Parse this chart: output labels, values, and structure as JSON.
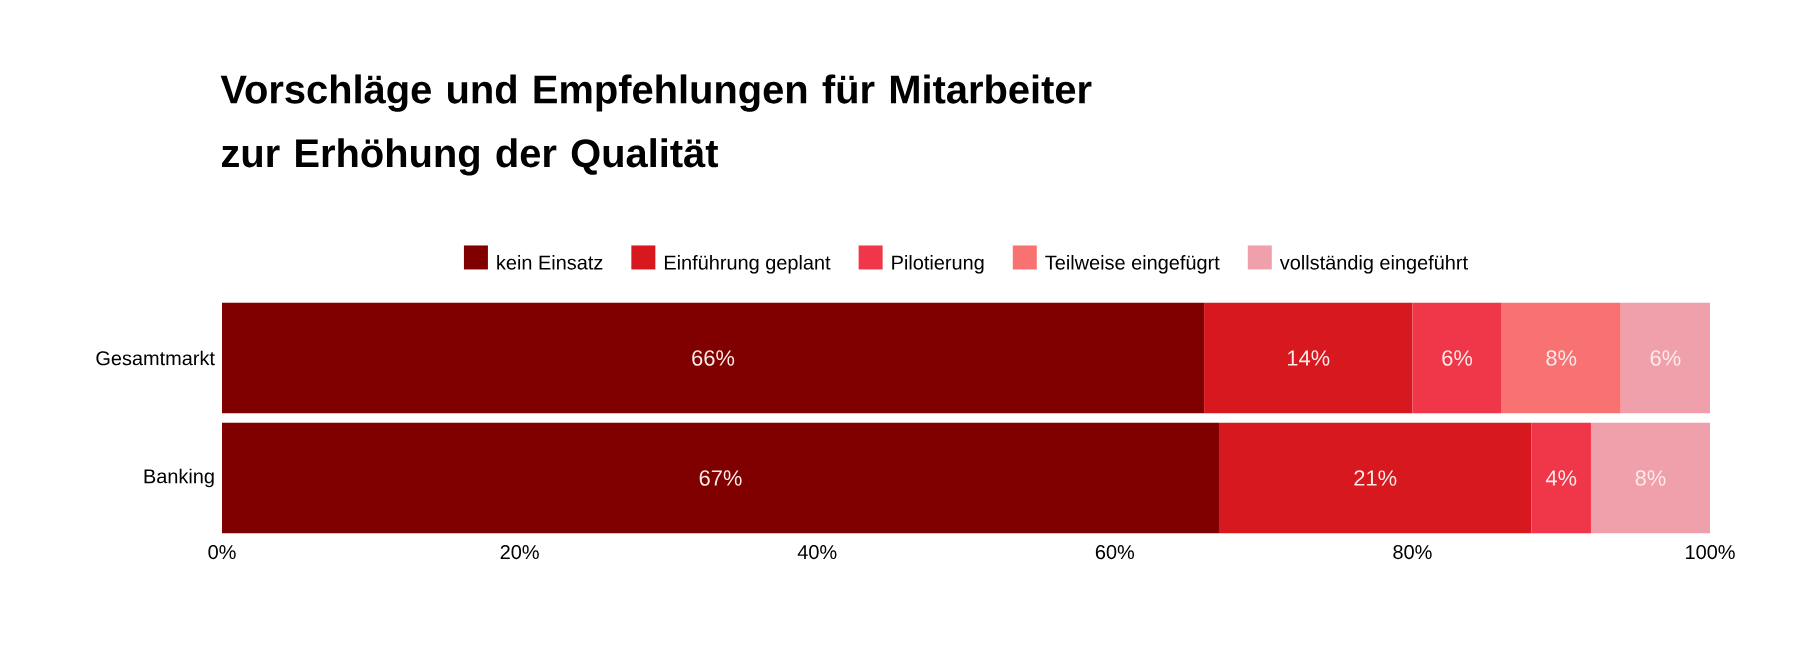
{
  "chart_data": {
    "type": "bar",
    "orientation": "horizontal",
    "stacked": true,
    "title": "Vorschläge und Empfehlungen für Mitarbeiter zur Erhöhung der Qualität",
    "categories": [
      "Gesamtmarkt",
      "Banking"
    ],
    "series": [
      {
        "name": "kein Einsatz",
        "color": "#800000",
        "values": [
          66,
          67
        ],
        "value_labels": [
          "66%",
          "67%"
        ]
      },
      {
        "name": "Einführung geplant",
        "color": "#d7191f",
        "values": [
          14,
          21
        ],
        "value_labels": [
          "14%",
          "21%"
        ]
      },
      {
        "name": "Pilotierung",
        "color": "#f0374a",
        "values": [
          6,
          4
        ],
        "value_labels": [
          "6%",
          "4%"
        ]
      },
      {
        "name": "Teilweise eingefügrt",
        "color": "#f87272",
        "values": [
          8,
          null
        ],
        "value_labels": [
          "8%",
          null
        ]
      },
      {
        "name": "vollständig eingeführt",
        "color": "#f0a0aa",
        "values": [
          6,
          8
        ],
        "value_labels": [
          "6%",
          "8%"
        ]
      }
    ],
    "xlim": [
      0,
      100
    ],
    "xticks": [
      {
        "value": 0,
        "label": "0%"
      },
      {
        "value": 20,
        "label": "20%"
      },
      {
        "value": 40,
        "label": "40%"
      },
      {
        "value": 60,
        "label": "60%"
      },
      {
        "value": 80,
        "label": "80%"
      },
      {
        "value": 100,
        "label": "100%"
      }
    ],
    "legend": "top",
    "grid": false
  }
}
